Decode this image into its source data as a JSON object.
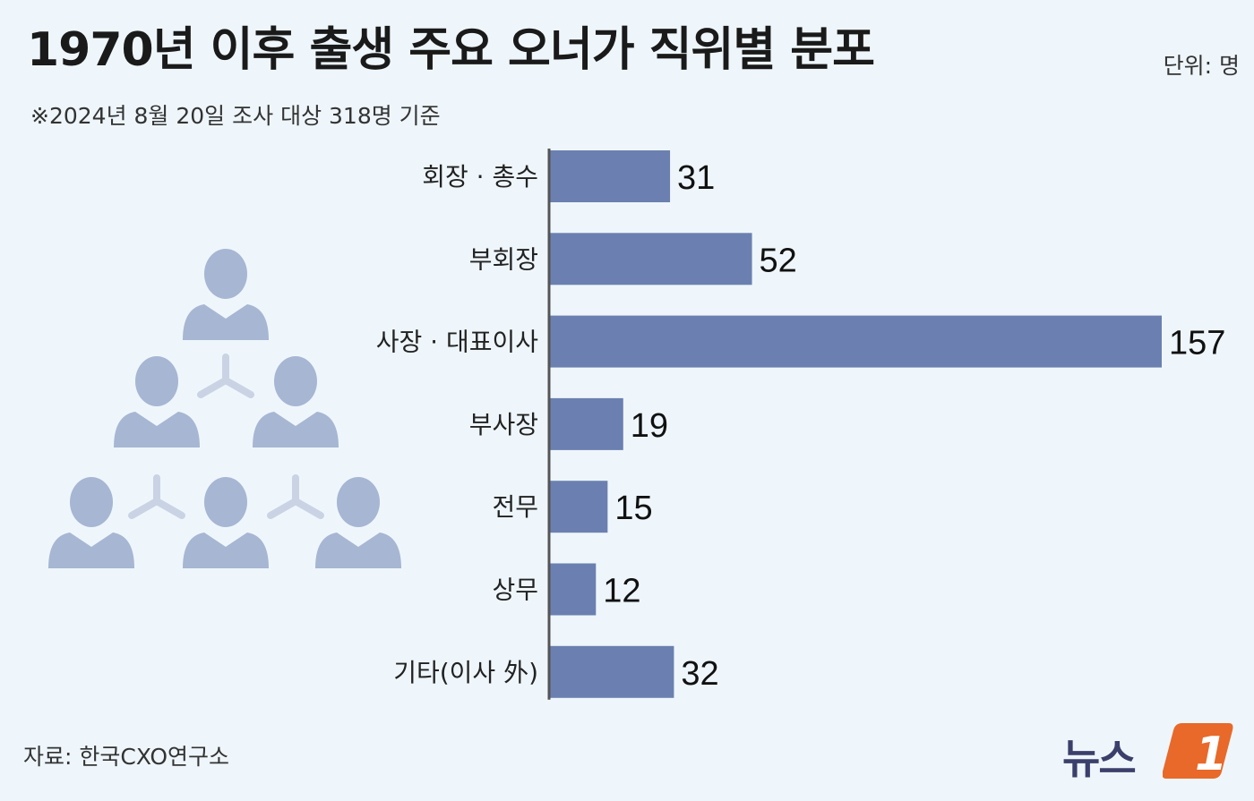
{
  "title": "1970년 이후 출생 주요 오너가 직위별 분포",
  "subtitle": "※2024년 8월 20일 조사 대상 318명 기준",
  "unit": "단위: 명",
  "source": "자료: 한국CXO연구소",
  "logo": {
    "text": "뉴스",
    "mark": "1"
  },
  "colors": {
    "bar": "#6b80b0",
    "illustration": "#a6b6d3",
    "logo_accent": "#e8692a",
    "logo_text": "#3b3f6b"
  },
  "chart_data": {
    "type": "bar",
    "orientation": "horizontal",
    "categories": [
      "회장 · 총수",
      "부회장",
      "사장 · 대표이사",
      "부사장",
      "전무",
      "상무",
      "기타(이사 外)"
    ],
    "values": [
      31,
      52,
      157,
      19,
      15,
      12,
      32
    ],
    "data_labels": [
      "31",
      "52",
      "157",
      "19",
      "15",
      "12",
      "32"
    ],
    "xlim": [
      0,
      157
    ],
    "grid": false,
    "legend": "none"
  }
}
